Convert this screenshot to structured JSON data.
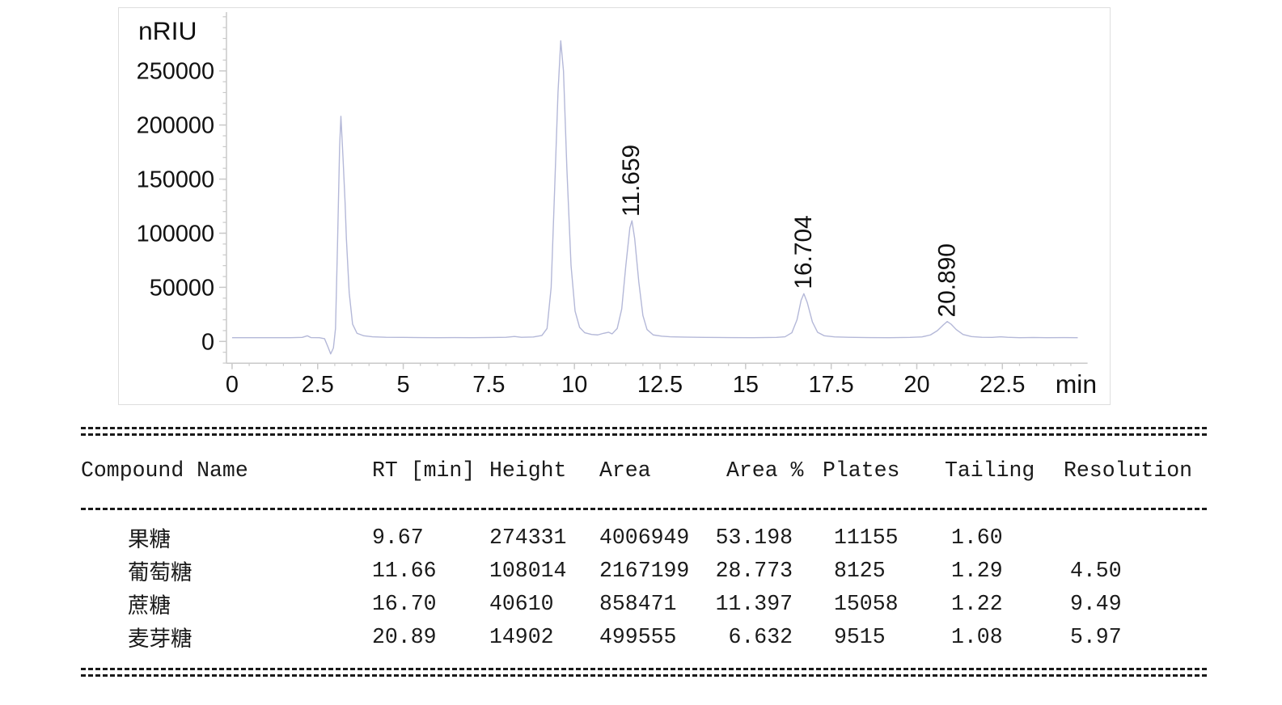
{
  "chart": {
    "y_axis_unit": "nRIU",
    "x_axis_unit": "min",
    "peak_labels": [
      {
        "text": "11.659"
      },
      {
        "text": "16.704"
      },
      {
        "text": "20.890"
      }
    ]
  },
  "chart_data": {
    "type": "line",
    "title": "",
    "xlabel": "min",
    "ylabel": "nRIU",
    "xlim": [
      0,
      25
    ],
    "ylim": [
      -20000,
      300000
    ],
    "grid": false,
    "legend": "none",
    "x_major_ticks": [
      0,
      2.5,
      5,
      7.5,
      10,
      12.5,
      15,
      17.5,
      20,
      22.5
    ],
    "x_minor_step": 0.5,
    "y_major_ticks": [
      0,
      50000,
      100000,
      150000,
      200000,
      250000
    ],
    "y_minor_step": 10000,
    "trace_color": "#b4b8d8",
    "annotated_peaks": [
      {
        "rt": 11.659,
        "label": "11.659",
        "apex_nRIU": 111500
      },
      {
        "rt": 16.704,
        "label": "16.704",
        "apex_nRIU": 44100
      },
      {
        "rt": 20.89,
        "label": "20.890",
        "apex_nRIU": 18400
      }
    ],
    "unlabeled_peaks": [
      {
        "rt": 3.2,
        "apex_nRIU": 208000,
        "note": "injection/system peak"
      },
      {
        "rt": 9.67,
        "apex_nRIU": 277800,
        "note": "fructose peak, label not shown"
      }
    ],
    "trace": [
      [
        0,
        3500
      ],
      [
        0.6,
        3400
      ],
      [
        1.2,
        3500
      ],
      [
        1.7,
        3400
      ],
      [
        2.05,
        3700
      ],
      [
        2.2,
        5200
      ],
      [
        2.3,
        3600
      ],
      [
        2.55,
        3500
      ],
      [
        2.7,
        2500
      ],
      [
        2.8,
        -5000
      ],
      [
        2.88,
        -11500
      ],
      [
        2.96,
        -6000
      ],
      [
        3.02,
        12000
      ],
      [
        3.08,
        90000
      ],
      [
        3.14,
        180000
      ],
      [
        3.18,
        208000
      ],
      [
        3.24,
        170000
      ],
      [
        3.3,
        128000
      ],
      [
        3.34,
        95000
      ],
      [
        3.42,
        45000
      ],
      [
        3.52,
        16000
      ],
      [
        3.65,
        7500
      ],
      [
        3.85,
        5200
      ],
      [
        4.1,
        4300
      ],
      [
        4.5,
        3900
      ],
      [
        5,
        3700
      ],
      [
        5.5,
        3600
      ],
      [
        6,
        3500
      ],
      [
        6.5,
        3550
      ],
      [
        7,
        3500
      ],
      [
        7.6,
        3650
      ],
      [
        8,
        3900
      ],
      [
        8.25,
        4600
      ],
      [
        8.45,
        3900
      ],
      [
        8.8,
        4100
      ],
      [
        9.05,
        5500
      ],
      [
        9.2,
        12000
      ],
      [
        9.32,
        50000
      ],
      [
        9.42,
        140000
      ],
      [
        9.52,
        230000
      ],
      [
        9.6,
        277800
      ],
      [
        9.68,
        250000
      ],
      [
        9.78,
        160000
      ],
      [
        9.9,
        70000
      ],
      [
        10.02,
        28000
      ],
      [
        10.15,
        13000
      ],
      [
        10.3,
        8000
      ],
      [
        10.5,
        6500
      ],
      [
        10.68,
        6000
      ],
      [
        10.85,
        7500
      ],
      [
        11.0,
        8500
      ],
      [
        11.1,
        7000
      ],
      [
        11.25,
        12000
      ],
      [
        11.38,
        30000
      ],
      [
        11.5,
        70000
      ],
      [
        11.62,
        105000
      ],
      [
        11.68,
        111500
      ],
      [
        11.76,
        95000
      ],
      [
        11.88,
        55000
      ],
      [
        12.0,
        24000
      ],
      [
        12.12,
        11000
      ],
      [
        12.3,
        6000
      ],
      [
        12.55,
        4800
      ],
      [
        12.8,
        4300
      ],
      [
        13.2,
        4000
      ],
      [
        13.8,
        3700
      ],
      [
        14.5,
        3600
      ],
      [
        15.2,
        3500
      ],
      [
        15.9,
        3700
      ],
      [
        16.15,
        4300
      ],
      [
        16.35,
        8000
      ],
      [
        16.5,
        20000
      ],
      [
        16.62,
        38000
      ],
      [
        16.7,
        44100
      ],
      [
        16.8,
        36000
      ],
      [
        16.95,
        18000
      ],
      [
        17.1,
        8500
      ],
      [
        17.3,
        5200
      ],
      [
        17.6,
        4200
      ],
      [
        18,
        3800
      ],
      [
        18.6,
        3600
      ],
      [
        19.2,
        3500
      ],
      [
        19.8,
        3700
      ],
      [
        20.15,
        4200
      ],
      [
        20.4,
        6000
      ],
      [
        20.6,
        10000
      ],
      [
        20.78,
        15500
      ],
      [
        20.89,
        18400
      ],
      [
        21.0,
        16000
      ],
      [
        21.15,
        11000
      ],
      [
        21.35,
        6500
      ],
      [
        21.6,
        4500
      ],
      [
        21.9,
        3900
      ],
      [
        22.2,
        3700
      ],
      [
        22.45,
        4300
      ],
      [
        22.65,
        3800
      ],
      [
        23.0,
        3500
      ],
      [
        23.4,
        3650
      ],
      [
        23.8,
        3500
      ],
      [
        24.3,
        3550
      ],
      [
        24.7,
        3500
      ]
    ]
  },
  "table": {
    "headers": {
      "name": "Compound Name",
      "rt": "RT [min]",
      "height": "Height",
      "area": "Area",
      "area_pct": "Area %",
      "plates": "Plates",
      "tailing": "Tailing",
      "resolution": "Resolution"
    },
    "rows": [
      {
        "name": "果糖",
        "rt": "9.67",
        "height": "274331",
        "area": "4006949",
        "area_pct": "53.198",
        "plates": "11155",
        "tailing": "1.60",
        "resolution": ""
      },
      {
        "name": "葡萄糖",
        "rt": "11.66",
        "height": "108014",
        "area": "2167199",
        "area_pct": "28.773",
        "plates": "8125",
        "tailing": "1.29",
        "resolution": "4.50"
      },
      {
        "name": "蔗糖",
        "rt": "16.70",
        "height": "40610",
        "area": "858471",
        "area_pct": "11.397",
        "plates": "15058",
        "tailing": "1.22",
        "resolution": "9.49"
      },
      {
        "name": "麦芽糖",
        "rt": "20.89",
        "height": "14902",
        "area": "499555",
        "area_pct": "6.632",
        "plates": "9515",
        "tailing": "1.08",
        "resolution": "5.97"
      }
    ]
  }
}
